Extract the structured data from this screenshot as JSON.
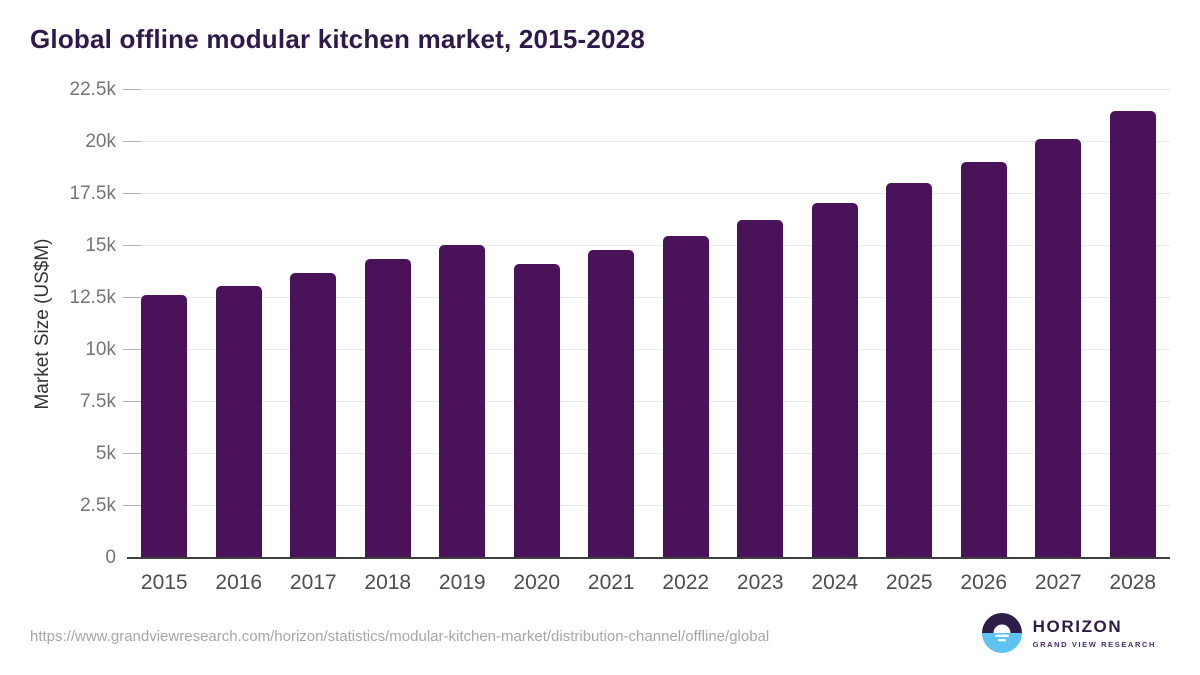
{
  "title": "Global offline modular kitchen market, 2015-2028",
  "chart_data": {
    "type": "bar",
    "title": "Global offline modular kitchen market, 2015-2028",
    "categories": [
      "2015",
      "2016",
      "2017",
      "2018",
      "2019",
      "2020",
      "2021",
      "2022",
      "2023",
      "2024",
      "2025",
      "2026",
      "2027",
      "2028"
    ],
    "values": [
      12630,
      13090,
      13720,
      14360,
      15050,
      14120,
      14790,
      15480,
      16240,
      17080,
      18010,
      19020,
      20160,
      21510
    ],
    "xlabel": "",
    "ylabel": "Market Size (US$M)",
    "ylim": [
      0,
      22500
    ],
    "yticks": [
      0,
      2500,
      5000,
      7500,
      10000,
      12500,
      15000,
      17500,
      20000,
      22500
    ],
    "ytick_labels": [
      "0",
      "2.5k",
      "5k",
      "7.5k",
      "10k",
      "12.5k",
      "15k",
      "17.5k",
      "20k",
      "22.5k"
    ],
    "grid": true,
    "legend": "none",
    "bar_color": "#4a1259"
  },
  "colors": {
    "title": "#2f194a",
    "bar": "#4a1259",
    "gridline": "#eaeaea",
    "axis_line": "#3f3f3f",
    "y_tick_label": "#757575",
    "x_tick_label": "#4d4d4d",
    "url_text": "#a6a6a6",
    "logo_dark": "#2d1c47",
    "logo_blue": "#5ec3f0"
  },
  "footer": {
    "source_url": "https://www.grandviewresearch.com/horizon/statistics/modular-kitchen-market/distribution-channel/offline/global",
    "logo": {
      "name": "HORIZON",
      "subtitle": "GRAND VIEW RESEARCH",
      "icon": "sun-over-horizon-icon"
    }
  }
}
